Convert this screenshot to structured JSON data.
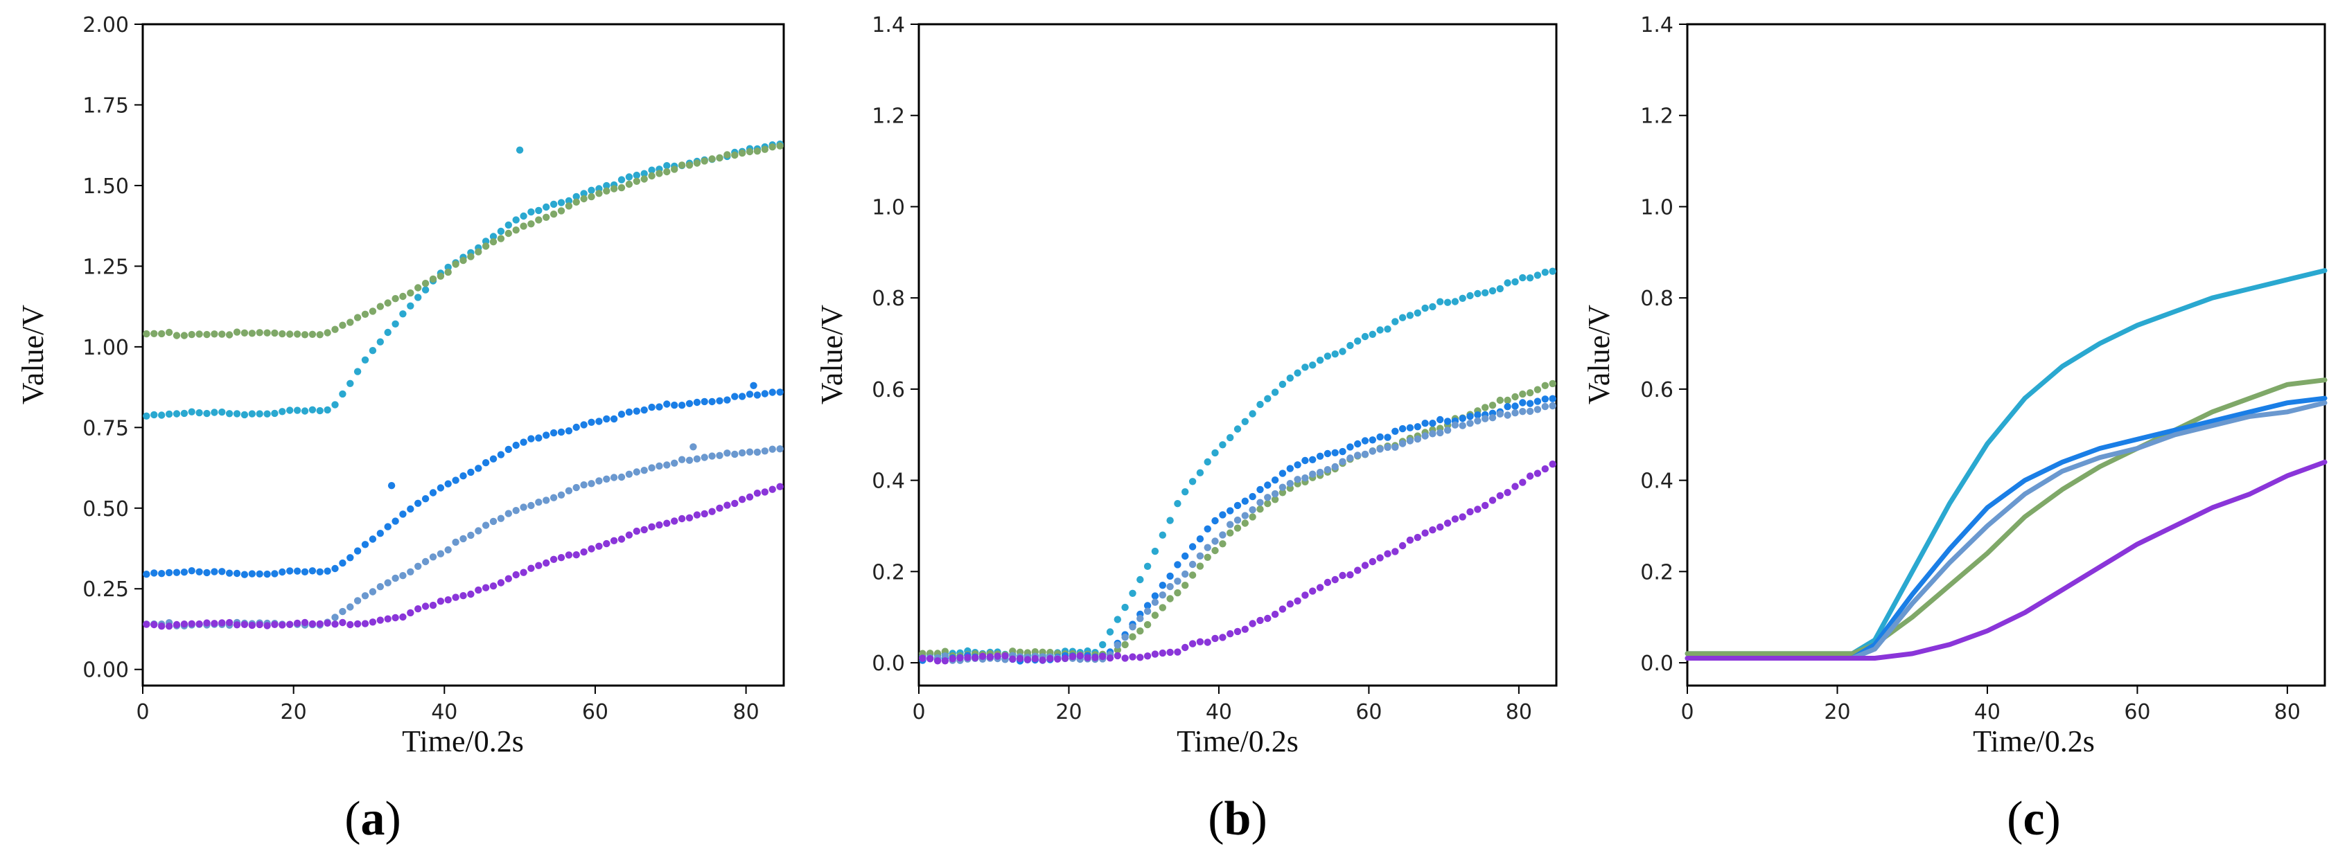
{
  "figure": {
    "series_colors": {
      "teal": "#2aa8d0",
      "olive": "#7fa868",
      "blue": "#1a7ee6",
      "steel": "#6a98cf",
      "purple": "#8a35d9"
    }
  },
  "chart_data": [
    {
      "type": "scatter",
      "panel_label": "a",
      "xlabel": "Time/0.2s",
      "ylabel": "Value/V",
      "xlim": [
        0,
        85
      ],
      "ylim": [
        -0.05,
        2.0
      ],
      "xticks": [
        0,
        20,
        40,
        60,
        80
      ],
      "yticks": [
        0.0,
        0.25,
        0.5,
        0.75,
        1.0,
        1.25,
        1.5,
        1.75,
        2.0
      ],
      "ytick_decimals": 2,
      "series": [
        {
          "name": "teal",
          "color": "#2aa8d0",
          "n": 85,
          "profile": [
            [
              0,
              0.79
            ],
            [
              25,
              0.8
            ],
            [
              30,
              0.98
            ],
            [
              40,
              1.24
            ],
            [
              50,
              1.4
            ],
            [
              60,
              1.49
            ],
            [
              70,
              1.56
            ],
            [
              85,
              1.63
            ]
          ],
          "extra_points": [
            [
              50,
              1.61
            ]
          ]
        },
        {
          "name": "olive",
          "color": "#7fa868",
          "n": 85,
          "profile": [
            [
              0,
              1.04
            ],
            [
              24,
              1.04
            ],
            [
              30,
              1.1
            ],
            [
              40,
              1.23
            ],
            [
              50,
              1.37
            ],
            [
              60,
              1.47
            ],
            [
              70,
              1.55
            ],
            [
              85,
              1.63
            ]
          ],
          "extra_points": []
        },
        {
          "name": "blue",
          "color": "#1a7ee6",
          "n": 85,
          "profile": [
            [
              0,
              0.3
            ],
            [
              25,
              0.3
            ],
            [
              30,
              0.4
            ],
            [
              40,
              0.57
            ],
            [
              50,
              0.7
            ],
            [
              60,
              0.77
            ],
            [
              70,
              0.82
            ],
            [
              85,
              0.86
            ]
          ],
          "extra_points": [
            [
              33,
              0.57
            ],
            [
              81,
              0.88
            ]
          ]
        },
        {
          "name": "steel",
          "color": "#6a98cf",
          "n": 85,
          "profile": [
            [
              0,
              0.14
            ],
            [
              24,
              0.14
            ],
            [
              30,
              0.23
            ],
            [
              40,
              0.37
            ],
            [
              50,
              0.5
            ],
            [
              60,
              0.58
            ],
            [
              70,
              0.64
            ],
            [
              85,
              0.69
            ]
          ],
          "extra_points": [
            [
              73,
              0.69
            ]
          ]
        },
        {
          "name": "purple",
          "color": "#8a35d9",
          "n": 85,
          "profile": [
            [
              0,
              0.14
            ],
            [
              28,
              0.14
            ],
            [
              35,
              0.17
            ],
            [
              45,
              0.25
            ],
            [
              55,
              0.34
            ],
            [
              65,
              0.42
            ],
            [
              75,
              0.49
            ],
            [
              85,
              0.57
            ]
          ],
          "extra_points": []
        }
      ]
    },
    {
      "type": "scatter",
      "panel_label": "b",
      "xlabel": "Time/0.2s",
      "ylabel": "Value/V",
      "xlim": [
        0,
        85
      ],
      "ylim": [
        -0.05,
        1.4
      ],
      "xticks": [
        0,
        20,
        40,
        60,
        80
      ],
      "yticks": [
        0.0,
        0.2,
        0.4,
        0.6,
        0.8,
        1.0,
        1.2,
        1.4
      ],
      "ytick_decimals": 1,
      "series": [
        {
          "name": "teal",
          "color": "#2aa8d0",
          "n": 85,
          "profile": [
            [
              0,
              0.02
            ],
            [
              24,
              0.02
            ],
            [
              30,
              0.2
            ],
            [
              35,
              0.36
            ],
            [
              40,
              0.47
            ],
            [
              45,
              0.56
            ],
            [
              50,
              0.63
            ],
            [
              60,
              0.72
            ],
            [
              70,
              0.79
            ],
            [
              85,
              0.86
            ]
          ],
          "extra_points": []
        },
        {
          "name": "olive",
          "color": "#7fa868",
          "n": 85,
          "profile": [
            [
              0,
              0.02
            ],
            [
              26,
              0.02
            ],
            [
              30,
              0.07
            ],
            [
              40,
              0.26
            ],
            [
              50,
              0.39
            ],
            [
              60,
              0.46
            ],
            [
              70,
              0.52
            ],
            [
              85,
              0.62
            ]
          ],
          "extra_points": []
        },
        {
          "name": "blue",
          "color": "#1a7ee6",
          "n": 85,
          "profile": [
            [
              0,
              0.01
            ],
            [
              25,
              0.01
            ],
            [
              30,
              0.12
            ],
            [
              40,
              0.32
            ],
            [
              50,
              0.43
            ],
            [
              60,
              0.49
            ],
            [
              70,
              0.53
            ],
            [
              85,
              0.58
            ]
          ],
          "extra_points": []
        },
        {
          "name": "steel",
          "color": "#6a98cf",
          "n": 85,
          "profile": [
            [
              0,
              0.01
            ],
            [
              25,
              0.01
            ],
            [
              30,
              0.1
            ],
            [
              40,
              0.28
            ],
            [
              50,
              0.4
            ],
            [
              60,
              0.46
            ],
            [
              70,
              0.51
            ],
            [
              85,
              0.57
            ]
          ],
          "extra_points": []
        },
        {
          "name": "purple",
          "color": "#8a35d9",
          "n": 85,
          "profile": [
            [
              0,
              0.01
            ],
            [
              27,
              0.01
            ],
            [
              35,
              0.03
            ],
            [
              40,
              0.05
            ],
            [
              50,
              0.13
            ],
            [
              60,
              0.22
            ],
            [
              70,
              0.3
            ],
            [
              80,
              0.39
            ],
            [
              85,
              0.44
            ]
          ],
          "extra_points": []
        }
      ]
    },
    {
      "type": "line",
      "panel_label": "c",
      "xlabel": "Time/0.2s",
      "ylabel": "Value/V",
      "xlim": [
        0,
        85
      ],
      "ylim": [
        -0.05,
        1.4
      ],
      "xticks": [
        0,
        20,
        40,
        60,
        80
      ],
      "yticks": [
        0.0,
        0.2,
        0.4,
        0.6,
        0.8,
        1.0,
        1.2,
        1.4
      ],
      "ytick_decimals": 1,
      "series": [
        {
          "name": "teal",
          "color": "#2aa8d0",
          "points": [
            [
              0,
              0.02
            ],
            [
              22,
              0.02
            ],
            [
              25,
              0.05
            ],
            [
              30,
              0.2
            ],
            [
              35,
              0.35
            ],
            [
              40,
              0.48
            ],
            [
              45,
              0.58
            ],
            [
              50,
              0.65
            ],
            [
              55,
              0.7
            ],
            [
              60,
              0.74
            ],
            [
              65,
              0.77
            ],
            [
              70,
              0.8
            ],
            [
              75,
              0.82
            ],
            [
              80,
              0.84
            ],
            [
              85,
              0.86
            ]
          ]
        },
        {
          "name": "olive",
          "color": "#7fa868",
          "points": [
            [
              0,
              0.02
            ],
            [
              22,
              0.02
            ],
            [
              25,
              0.04
            ],
            [
              30,
              0.1
            ],
            [
              35,
              0.17
            ],
            [
              40,
              0.24
            ],
            [
              45,
              0.32
            ],
            [
              50,
              0.38
            ],
            [
              55,
              0.43
            ],
            [
              60,
              0.47
            ],
            [
              65,
              0.51
            ],
            [
              70,
              0.55
            ],
            [
              75,
              0.58
            ],
            [
              80,
              0.61
            ],
            [
              85,
              0.62
            ]
          ]
        },
        {
          "name": "blue",
          "color": "#1a7ee6",
          "points": [
            [
              0,
              0.01
            ],
            [
              22,
              0.01
            ],
            [
              25,
              0.04
            ],
            [
              30,
              0.15
            ],
            [
              35,
              0.25
            ],
            [
              40,
              0.34
            ],
            [
              45,
              0.4
            ],
            [
              50,
              0.44
            ],
            [
              55,
              0.47
            ],
            [
              60,
              0.49
            ],
            [
              65,
              0.51
            ],
            [
              70,
              0.53
            ],
            [
              75,
              0.55
            ],
            [
              80,
              0.57
            ],
            [
              85,
              0.58
            ]
          ]
        },
        {
          "name": "steel",
          "color": "#6a98cf",
          "points": [
            [
              0,
              0.01
            ],
            [
              22,
              0.01
            ],
            [
              25,
              0.03
            ],
            [
              30,
              0.13
            ],
            [
              35,
              0.22
            ],
            [
              40,
              0.3
            ],
            [
              45,
              0.37
            ],
            [
              50,
              0.42
            ],
            [
              55,
              0.45
            ],
            [
              60,
              0.47
            ],
            [
              65,
              0.5
            ],
            [
              70,
              0.52
            ],
            [
              75,
              0.54
            ],
            [
              80,
              0.55
            ],
            [
              85,
              0.57
            ]
          ]
        },
        {
          "name": "purple",
          "color": "#8a35d9",
          "points": [
            [
              0,
              0.01
            ],
            [
              20,
              0.01
            ],
            [
              25,
              0.01
            ],
            [
              30,
              0.02
            ],
            [
              35,
              0.04
            ],
            [
              40,
              0.07
            ],
            [
              45,
              0.11
            ],
            [
              50,
              0.16
            ],
            [
              55,
              0.21
            ],
            [
              60,
              0.26
            ],
            [
              65,
              0.3
            ],
            [
              70,
              0.34
            ],
            [
              75,
              0.37
            ],
            [
              80,
              0.41
            ],
            [
              85,
              0.44
            ]
          ]
        }
      ]
    }
  ]
}
